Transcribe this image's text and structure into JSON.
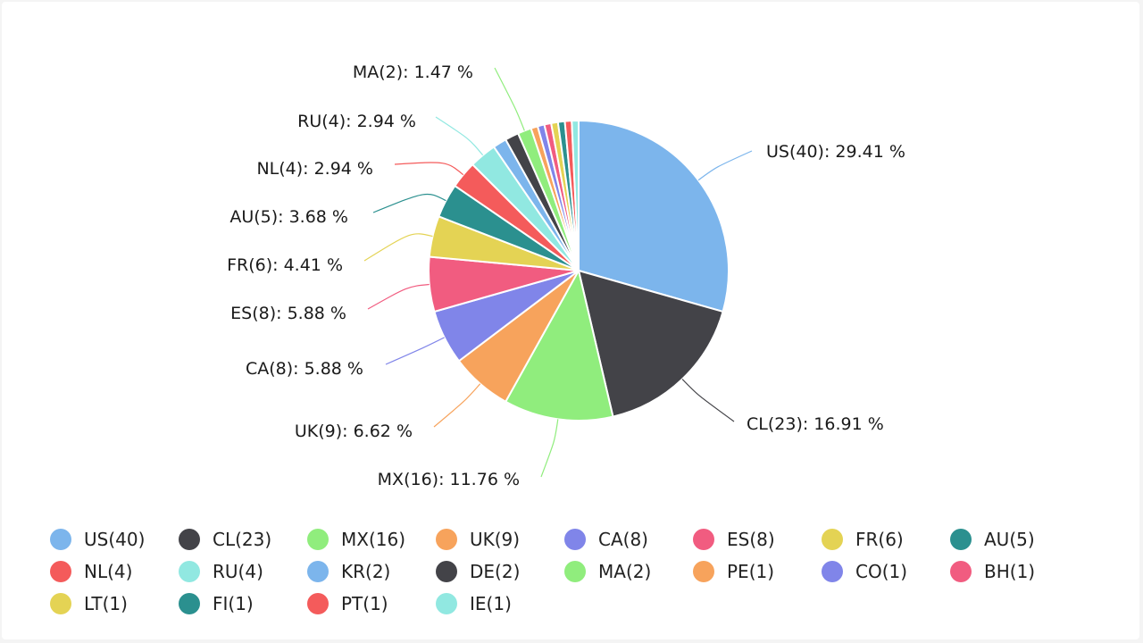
{
  "chart_data": {
    "type": "pie",
    "title": "",
    "label_suffix": " %",
    "slices": [
      {
        "label": "US(40)",
        "value": 40,
        "percent": "29.41",
        "color": "#7cb5ec"
      },
      {
        "label": "CL(23)",
        "value": 23,
        "percent": "16.91",
        "color": "#434348"
      },
      {
        "label": "MX(16)",
        "value": 16,
        "percent": "11.76",
        "color": "#90ed7d"
      },
      {
        "label": "UK(9)",
        "value": 9,
        "percent": "6.62",
        "color": "#f7a35c"
      },
      {
        "label": "CA(8)",
        "value": 8,
        "percent": "5.88",
        "color": "#8085e9"
      },
      {
        "label": "ES(8)",
        "value": 8,
        "percent": "5.88",
        "color": "#f15c80"
      },
      {
        "label": "FR(6)",
        "value": 6,
        "percent": "4.41",
        "color": "#e4d354"
      },
      {
        "label": "AU(5)",
        "value": 5,
        "percent": "3.68",
        "color": "#2b908f"
      },
      {
        "label": "NL(4)",
        "value": 4,
        "percent": "2.94",
        "color": "#f45b5b"
      },
      {
        "label": "RU(4)",
        "value": 4,
        "percent": "2.94",
        "color": "#91e8e1"
      },
      {
        "label": "KR(2)",
        "value": 2,
        "percent": "1.47",
        "color": "#7cb5ec"
      },
      {
        "label": "DE(2)",
        "value": 2,
        "percent": "1.47",
        "color": "#434348"
      },
      {
        "label": "MA(2)",
        "value": 2,
        "percent": "1.47",
        "color": "#90ed7d"
      },
      {
        "label": "PE(1)",
        "value": 1,
        "percent": "0.74",
        "color": "#f7a35c"
      },
      {
        "label": "CO(1)",
        "value": 1,
        "percent": "0.74",
        "color": "#8085e9"
      },
      {
        "label": "BH(1)",
        "value": 1,
        "percent": "0.74",
        "color": "#f15c80"
      },
      {
        "label": "LT(1)",
        "value": 1,
        "percent": "0.74",
        "color": "#e4d354"
      },
      {
        "label": "FI(1)",
        "value": 1,
        "percent": "0.74",
        "color": "#2b908f"
      },
      {
        "label": "PT(1)",
        "value": 1,
        "percent": "0.74",
        "color": "#f45b5b"
      },
      {
        "label": "IE(1)",
        "value": 1,
        "percent": "0.74",
        "color": "#91e8e1"
      }
    ],
    "data_labels_shown": [
      "US(40)",
      "CL(23)",
      "MX(16)",
      "UK(9)",
      "CA(8)",
      "ES(8)",
      "FR(6)",
      "AU(5)",
      "NL(4)",
      "RU(4)",
      "MA(2)"
    ],
    "legend_position": "bottom"
  }
}
